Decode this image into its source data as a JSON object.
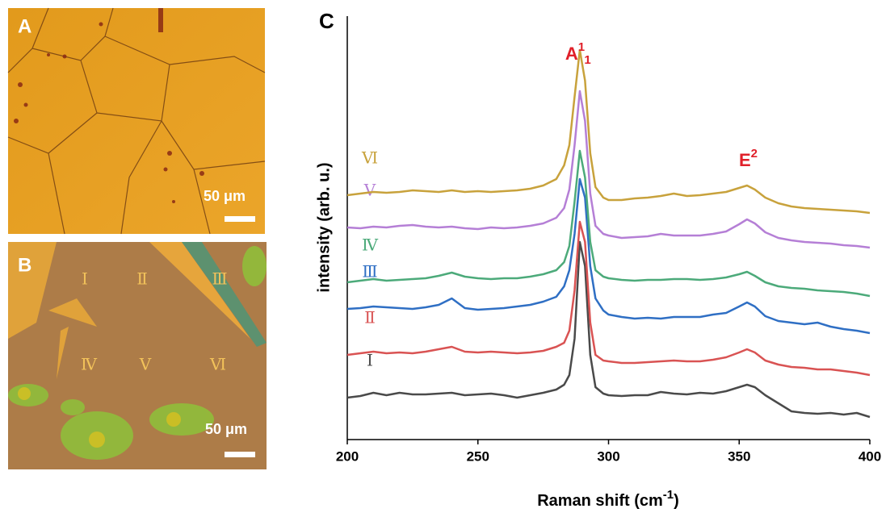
{
  "panels": [
    {
      "label": "A",
      "scale_bar": "50 μm"
    },
    {
      "label": "B",
      "scale_bar": "50 μm",
      "regions": [
        "Ⅰ",
        "Ⅱ",
        "Ⅲ",
        "Ⅳ",
        "Ⅴ",
        "Ⅵ"
      ]
    }
  ],
  "chart_data": {
    "type": "line",
    "panel_label": "C",
    "xlabel": {
      "text": "Raman shift (cm",
      "sup": "-1",
      "end": ")"
    },
    "ylabel": "intensity (arb. u.)",
    "annotations": [
      {
        "text": "A",
        "sup": "1",
        "sub": "1",
        "x": 289
      },
      {
        "text": "E",
        "sup": "2",
        "x": 353
      }
    ],
    "xlim": [
      200,
      400
    ],
    "xticks": [
      200,
      250,
      300,
      350,
      400
    ],
    "ylim": [
      0,
      525
    ],
    "x": [
      200,
      205,
      210,
      215,
      220,
      225,
      230,
      235,
      240,
      245,
      250,
      255,
      260,
      265,
      270,
      275,
      280,
      283,
      285,
      287,
      289,
      291,
      293,
      295,
      298,
      300,
      305,
      310,
      315,
      320,
      325,
      330,
      335,
      340,
      345,
      350,
      353,
      356,
      360,
      365,
      370,
      375,
      380,
      385,
      390,
      395,
      400
    ],
    "series": [
      {
        "name": "Ⅰ",
        "color": "#4a4a4a",
        "values": [
          52,
          54,
          58,
          55,
          58,
          56,
          56,
          57,
          58,
          55,
          56,
          57,
          55,
          52,
          55,
          58,
          62,
          68,
          80,
          125,
          245,
          215,
          105,
          65,
          57,
          55,
          54,
          55,
          55,
          59,
          57,
          56,
          58,
          57,
          60,
          65,
          68,
          65,
          55,
          45,
          35,
          33,
          32,
          33,
          31,
          33,
          28
        ]
      },
      {
        "name": "Ⅱ",
        "color": "#d95353",
        "values": [
          105,
          107,
          109,
          107,
          108,
          107,
          109,
          112,
          115,
          109,
          108,
          109,
          108,
          107,
          108,
          110,
          115,
          120,
          135,
          185,
          270,
          245,
          145,
          105,
          98,
          97,
          95,
          95,
          96,
          97,
          98,
          97,
          97,
          99,
          102,
          108,
          112,
          108,
          98,
          93,
          90,
          89,
          87,
          87,
          85,
          83,
          80
        ]
      },
      {
        "name": "Ⅲ",
        "color": "#2f6fc4",
        "values": [
          162,
          163,
          165,
          164,
          163,
          162,
          164,
          167,
          175,
          163,
          161,
          162,
          163,
          165,
          167,
          171,
          177,
          190,
          210,
          255,
          323,
          300,
          215,
          175,
          160,
          155,
          152,
          150,
          151,
          150,
          152,
          152,
          152,
          155,
          157,
          165,
          170,
          165,
          153,
          147,
          145,
          143,
          145,
          140,
          137,
          135,
          132
        ]
      },
      {
        "name": "Ⅳ",
        "color": "#4caa7a",
        "values": [
          195,
          197,
          199,
          197,
          198,
          199,
          200,
          203,
          207,
          202,
          200,
          199,
          200,
          200,
          202,
          205,
          210,
          220,
          240,
          295,
          358,
          325,
          245,
          210,
          202,
          200,
          198,
          197,
          198,
          198,
          199,
          199,
          198,
          199,
          201,
          205,
          208,
          203,
          195,
          190,
          188,
          187,
          185,
          184,
          183,
          181,
          178
        ]
      },
      {
        "name": "Ⅴ",
        "color": "#b57fd6",
        "values": [
          263,
          262,
          264,
          263,
          265,
          266,
          264,
          263,
          264,
          262,
          261,
          263,
          262,
          263,
          265,
          268,
          275,
          287,
          310,
          365,
          432,
          395,
          305,
          265,
          255,
          253,
          250,
          251,
          252,
          255,
          253,
          253,
          253,
          255,
          258,
          267,
          273,
          268,
          257,
          250,
          247,
          245,
          244,
          243,
          241,
          240,
          238
        ]
      },
      {
        "name": "Ⅵ",
        "color": "#c8a23c",
        "values": [
          303,
          305,
          307,
          306,
          307,
          309,
          308,
          307,
          309,
          307,
          308,
          307,
          308,
          309,
          311,
          315,
          323,
          340,
          365,
          425,
          483,
          445,
          355,
          313,
          300,
          297,
          297,
          299,
          300,
          302,
          305,
          302,
          303,
          305,
          307,
          312,
          315,
          310,
          300,
          293,
          289,
          287,
          286,
          285,
          284,
          283,
          281
        ]
      }
    ]
  }
}
